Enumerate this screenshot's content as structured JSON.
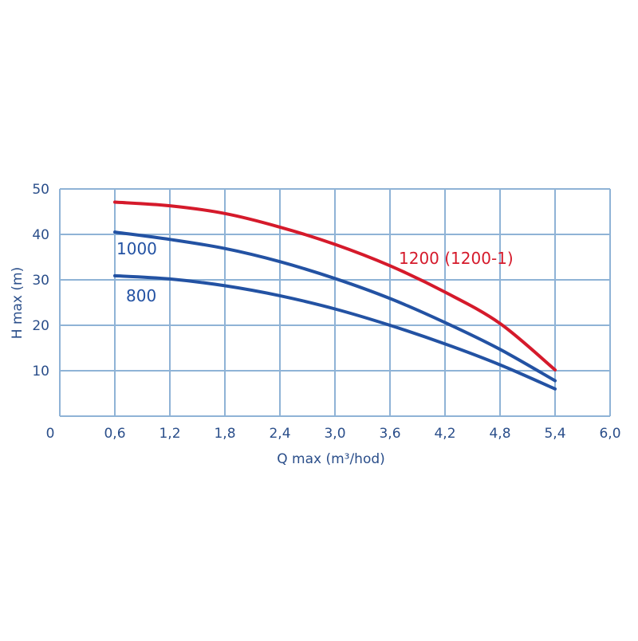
{
  "chart_data": {
    "type": "line",
    "xlabel": "Q max (m³/hod)",
    "ylabel": "H max (m)",
    "xlim": [
      0,
      6.0
    ],
    "ylim": [
      0,
      50
    ],
    "x_ticks": [
      "0",
      "0,6",
      "1,2",
      "1,8",
      "2,4",
      "3,0",
      "3,6",
      "4,2",
      "4,8",
      "5,4",
      "6,0"
    ],
    "y_ticks": [
      "10",
      "20",
      "30",
      "40",
      "50"
    ],
    "grid": true,
    "grid_color": "#8fb3d6",
    "series": [
      {
        "name": "1200 (1200-1)",
        "color": "#d51a2b",
        "x": [
          0.6,
          1.2,
          1.8,
          2.4,
          3.0,
          3.6,
          4.2,
          4.8,
          5.4
        ],
        "y": [
          47.1,
          46.3,
          44.6,
          41.6,
          37.8,
          33.1,
          27.3,
          20.4,
          10.2
        ]
      },
      {
        "name": "1000",
        "color": "#2352a3",
        "x": [
          0.6,
          1.2,
          1.8,
          2.4,
          3.0,
          3.6,
          4.2,
          4.8,
          5.4
        ],
        "y": [
          40.5,
          38.9,
          36.9,
          34.0,
          30.3,
          25.9,
          20.6,
          14.7,
          7.8
        ]
      },
      {
        "name": "800",
        "color": "#2352a3",
        "x": [
          0.6,
          1.2,
          1.8,
          2.4,
          3.0,
          3.6,
          4.2,
          4.8,
          5.4
        ],
        "y": [
          30.9,
          30.2,
          28.7,
          26.5,
          23.6,
          20.0,
          15.9,
          11.3,
          6.0
        ]
      }
    ]
  }
}
